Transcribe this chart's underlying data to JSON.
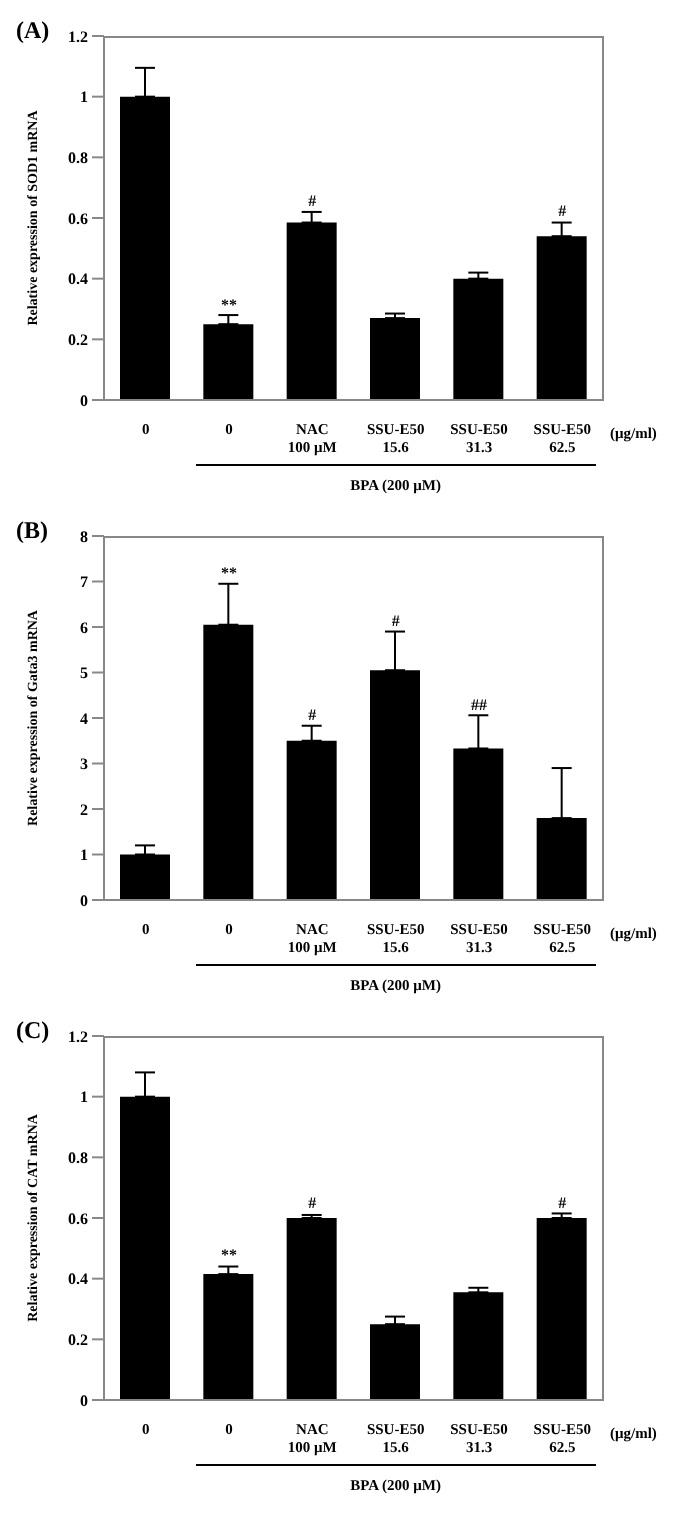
{
  "chart_data": [
    {
      "type": "bar",
      "title": "(A)",
      "ylabel": "Relative expression of SOD1 mRNA",
      "categories": [
        "0",
        "0",
        "NAC\n100 μM",
        "SSU-E50\n15.6",
        "SSU-E50\n31.3",
        "SSU-E50\n62.5"
      ],
      "values": [
        1.0,
        0.25,
        0.585,
        0.27,
        0.4,
        0.54
      ],
      "errors": [
        [
          1.0,
          1.095
        ],
        [
          0.25,
          0.28
        ],
        [
          0.585,
          0.62
        ],
        [
          0.27,
          0.285
        ],
        [
          0.4,
          0.42
        ],
        [
          0.54,
          0.585
        ]
      ],
      "color": "#000000",
      "ylim": [
        0,
        1.2
      ],
      "yticks": [
        0,
        0.2,
        0.4,
        0.6,
        0.8,
        1,
        1.2
      ],
      "value_labels": [
        null,
        "**",
        "#",
        null,
        null,
        "#"
      ],
      "annotations": [
        "(μg/ml)",
        "BPA (200 μM)"
      ]
    },
    {
      "type": "bar",
      "title": "(B)",
      "ylabel": "Relative expression of Gata3 mRNA",
      "categories": [
        "0",
        "0",
        "NAC\n100 μM",
        "SSU-E50\n15.6",
        "SSU-E50\n31.3",
        "SSU-E50\n62.5"
      ],
      "values": [
        1.0,
        6.05,
        3.5,
        5.05,
        3.33,
        1.8
      ],
      "errors": [
        [
          1.0,
          1.2
        ],
        [
          6.05,
          6.95
        ],
        [
          3.5,
          3.83
        ],
        [
          5.05,
          5.9
        ],
        [
          3.33,
          4.06
        ],
        [
          1.8,
          2.9
        ]
      ],
      "color": "#000000",
      "ylim": [
        0,
        8
      ],
      "yticks": [
        0,
        1,
        2,
        3,
        4,
        5,
        6,
        7,
        8
      ],
      "value_labels": [
        null,
        "**",
        "#",
        "#",
        "##",
        null
      ],
      "annotations": [
        "(μg/ml)",
        "BPA (200 μM)"
      ]
    },
    {
      "type": "bar",
      "title": "(C)",
      "ylabel": "Relative expression of CAT mRNA",
      "categories": [
        "0",
        "0",
        "NAC\n100 μM",
        "SSU-E50\n15.6",
        "SSU-E50\n31.3",
        "SSU-E50\n62.5"
      ],
      "values": [
        1.0,
        0.415,
        0.6,
        0.25,
        0.355,
        0.6
      ],
      "errors": [
        [
          1.0,
          1.08
        ],
        [
          0.415,
          0.44
        ],
        [
          0.6,
          0.61
        ],
        [
          0.25,
          0.275
        ],
        [
          0.355,
          0.37
        ],
        [
          0.6,
          0.615
        ]
      ],
      "color": "#000000",
      "ylim": [
        0,
        1.2
      ],
      "yticks": [
        0,
        0.2,
        0.4,
        0.6,
        0.8,
        1,
        1.2
      ],
      "value_labels": [
        null,
        "**",
        "#",
        null,
        null,
        "#"
      ],
      "annotations": [
        "(μg/ml)",
        "BPA (200 μM)"
      ]
    }
  ]
}
